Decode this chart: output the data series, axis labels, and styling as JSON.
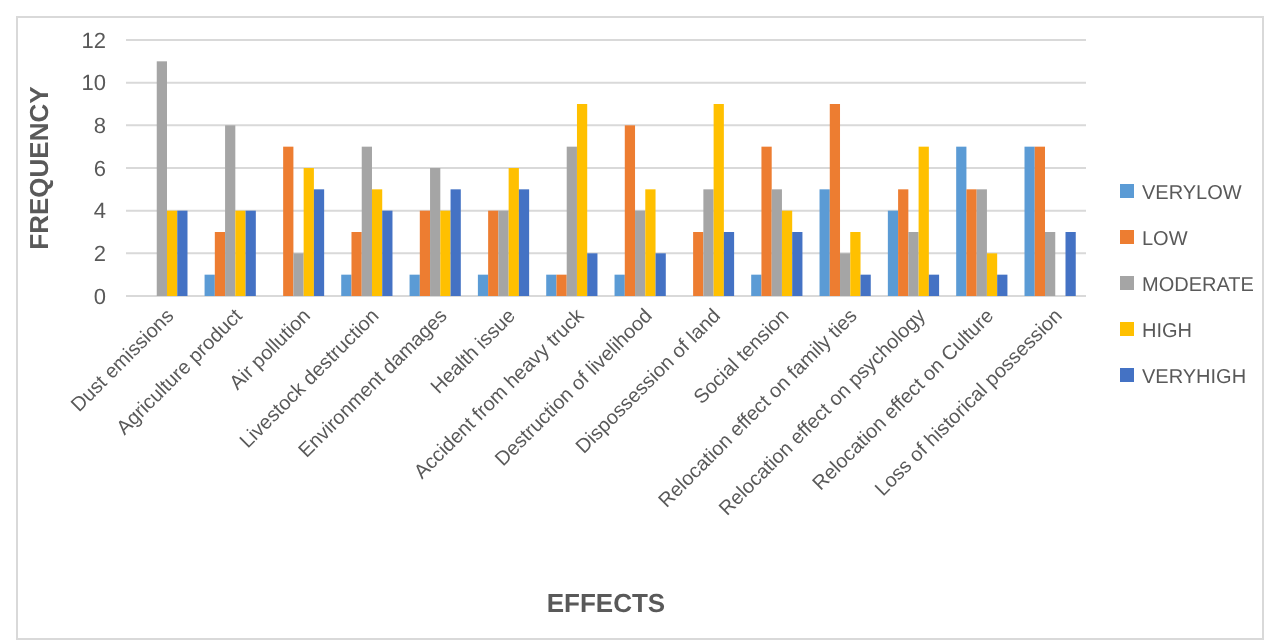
{
  "chart_data": {
    "type": "bar",
    "xlabel": "EFFECTS",
    "ylabel": "FREQUENCY",
    "categories": [
      "Dust emissions",
      "Agriculture product",
      "Air pollution",
      "Livestock destruction",
      "Environment damages",
      "Health issue",
      "Accident from heavy truck",
      "Destruction of livelihood",
      "Dispossession of land",
      "Social tension",
      "Relocation effect on family ties",
      "Relocation effect on psychology",
      "Relocation effect on Culture",
      "Loss of historical possession"
    ],
    "series": [
      {
        "name": "VERYLOW",
        "color": "#5b9bd5",
        "values": [
          0,
          1,
          0,
          1,
          1,
          1,
          1,
          1,
          0,
          1,
          5,
          4,
          7,
          7
        ]
      },
      {
        "name": "LOW",
        "color": "#ed7d31",
        "values": [
          0,
          3,
          7,
          3,
          4,
          4,
          1,
          8,
          3,
          7,
          9,
          5,
          5,
          7
        ]
      },
      {
        "name": "MODERATE",
        "color": "#a5a5a5",
        "values": [
          11,
          8,
          2,
          7,
          6,
          4,
          7,
          4,
          5,
          5,
          2,
          3,
          5,
          3
        ]
      },
      {
        "name": "HIGH",
        "color": "#ffc000",
        "values": [
          4,
          4,
          6,
          5,
          4,
          6,
          9,
          5,
          9,
          4,
          3,
          7,
          2,
          0
        ]
      },
      {
        "name": "VERYHIGH",
        "color": "#4472c4",
        "values": [
          4,
          4,
          5,
          4,
          5,
          5,
          2,
          2,
          3,
          3,
          1,
          1,
          1,
          3
        ]
      }
    ],
    "ylim": [
      0,
      12
    ],
    "yticks": [
      0,
      2,
      4,
      6,
      8,
      10,
      12
    ],
    "grid": "y",
    "legend": "right"
  }
}
